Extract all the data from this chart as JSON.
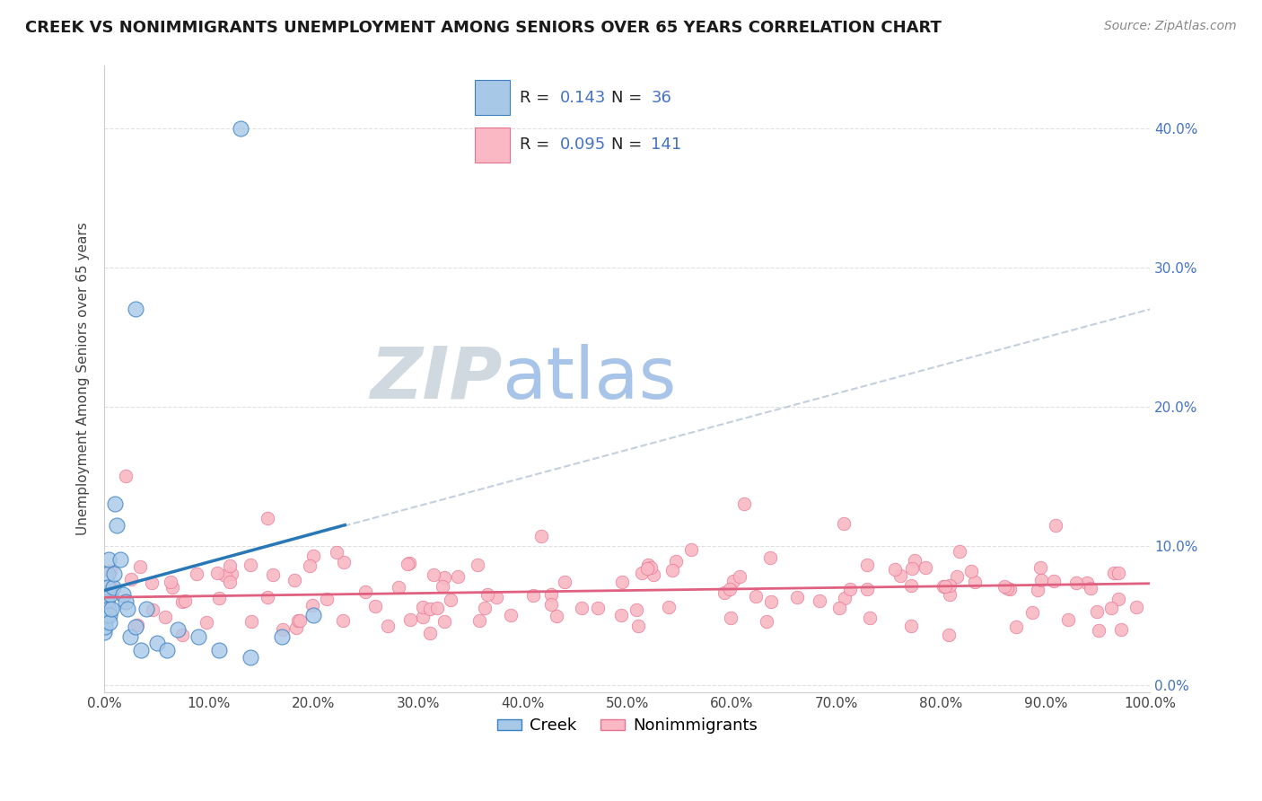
{
  "title": "CREEK VS NONIMMIGRANTS UNEMPLOYMENT AMONG SENIORS OVER 65 YEARS CORRELATION CHART",
  "source": "Source: ZipAtlas.com",
  "ylabel": "Unemployment Among Seniors over 65 years",
  "xlim": [
    0.0,
    1.0
  ],
  "ylim": [
    -0.005,
    0.445
  ],
  "xtick_first": "0.0%",
  "xtick_last": "100.0%",
  "yticks": [
    0.0,
    0.1,
    0.2,
    0.3,
    0.4
  ],
  "yticklabels_right": [
    "0.0%",
    "10.0%",
    "20.0%",
    "30.0%",
    "40.0%"
  ],
  "creek_face_color": "#a8c8e8",
  "creek_edge_color": "#3a7fc1",
  "creek_line_color": "#2878b8",
  "nonimm_face_color": "#f9b8c4",
  "nonimm_edge_color": "#e87090",
  "nonimm_line_color": "#e06080",
  "dashed_line_color": "#b8c8d8",
  "R_creek": 0.143,
  "N_creek": 36,
  "R_nonimm": 0.095,
  "N_nonimm": 141,
  "blue_text_color": "#4472c4",
  "background_color": "#ffffff",
  "grid_color": "#e0e0e0",
  "watermark_ZIP": "ZIP",
  "watermark_atlas": "atlas",
  "watermark_ZIP_color": "#d0d8e0",
  "watermark_atlas_color": "#a8c4e8",
  "legend_label_creek": "Creek",
  "legend_label_nonimm": "Nonimmigrants",
  "title_fontsize": 13,
  "axis_fontsize": 11,
  "legend_fontsize": 13,
  "creek_trend_x0": 0.0,
  "creek_trend_x1": 0.23,
  "creek_trend_y0": 0.068,
  "creek_trend_y1": 0.115,
  "dashed_trend_x0": 0.0,
  "dashed_trend_x1": 1.0,
  "dashed_trend_y0": 0.068,
  "dashed_trend_y1": 0.27,
  "nonimm_trend_x0": 0.0,
  "nonimm_trend_x1": 1.0,
  "nonimm_trend_y0": 0.063,
  "nonimm_trend_y1": 0.073
}
